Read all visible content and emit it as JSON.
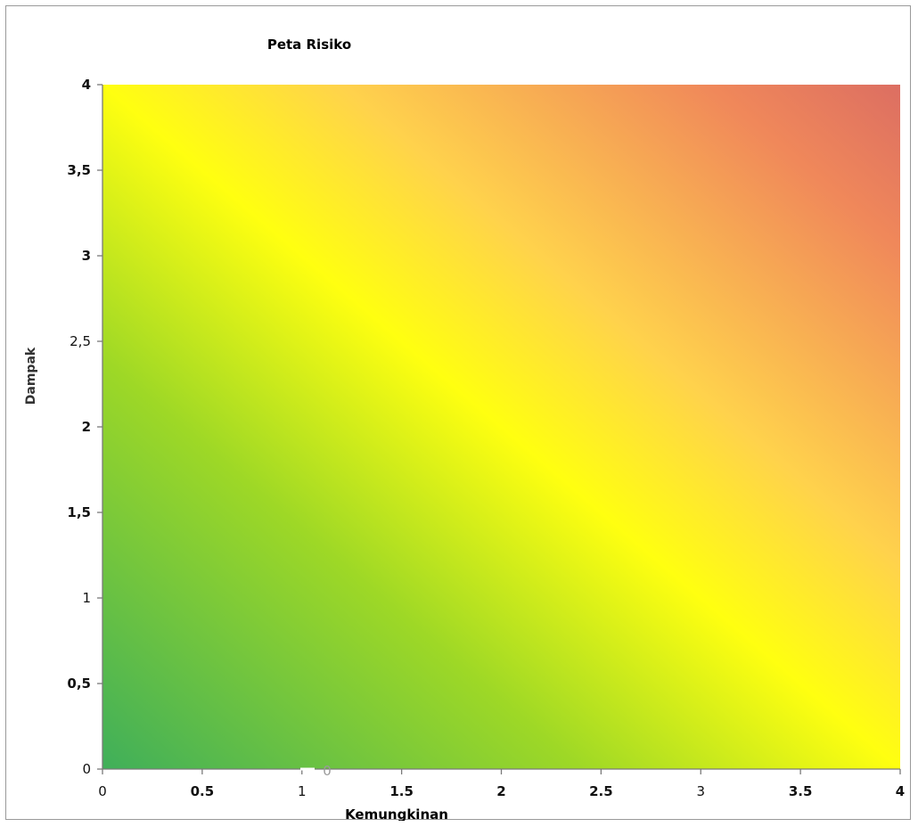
{
  "chart_data": {
    "type": "heatmap",
    "title": "Peta Risiko",
    "xlabel": "Kemungkinan",
    "ylabel": "Dampak",
    "xlim": [
      0,
      4
    ],
    "ylim": [
      0,
      4
    ],
    "x_ticks": [
      "0",
      "0.5",
      "1",
      "1.5",
      "2",
      "2.5",
      "3",
      "3.5",
      "4"
    ],
    "y_ticks": [
      "0",
      "0,5",
      "1",
      "1,5",
      "2",
      "2,5",
      "3",
      "3,5",
      "4"
    ],
    "bold_x_ticks": [
      "0.5",
      "1.5",
      "2",
      "2.5",
      "3.5",
      "4"
    ],
    "bold_y_ticks": [
      "0,5",
      "1,5",
      "2",
      "3",
      "3,5",
      "4"
    ],
    "annotation": "0",
    "grid": false,
    "colors": {
      "low": "#3faf5a",
      "mid_low": "#9ed826",
      "mid": "#ffff10",
      "mid_high": "#ffd24c",
      "high": "#f0885a",
      "very_high": "#dc6e62"
    }
  }
}
